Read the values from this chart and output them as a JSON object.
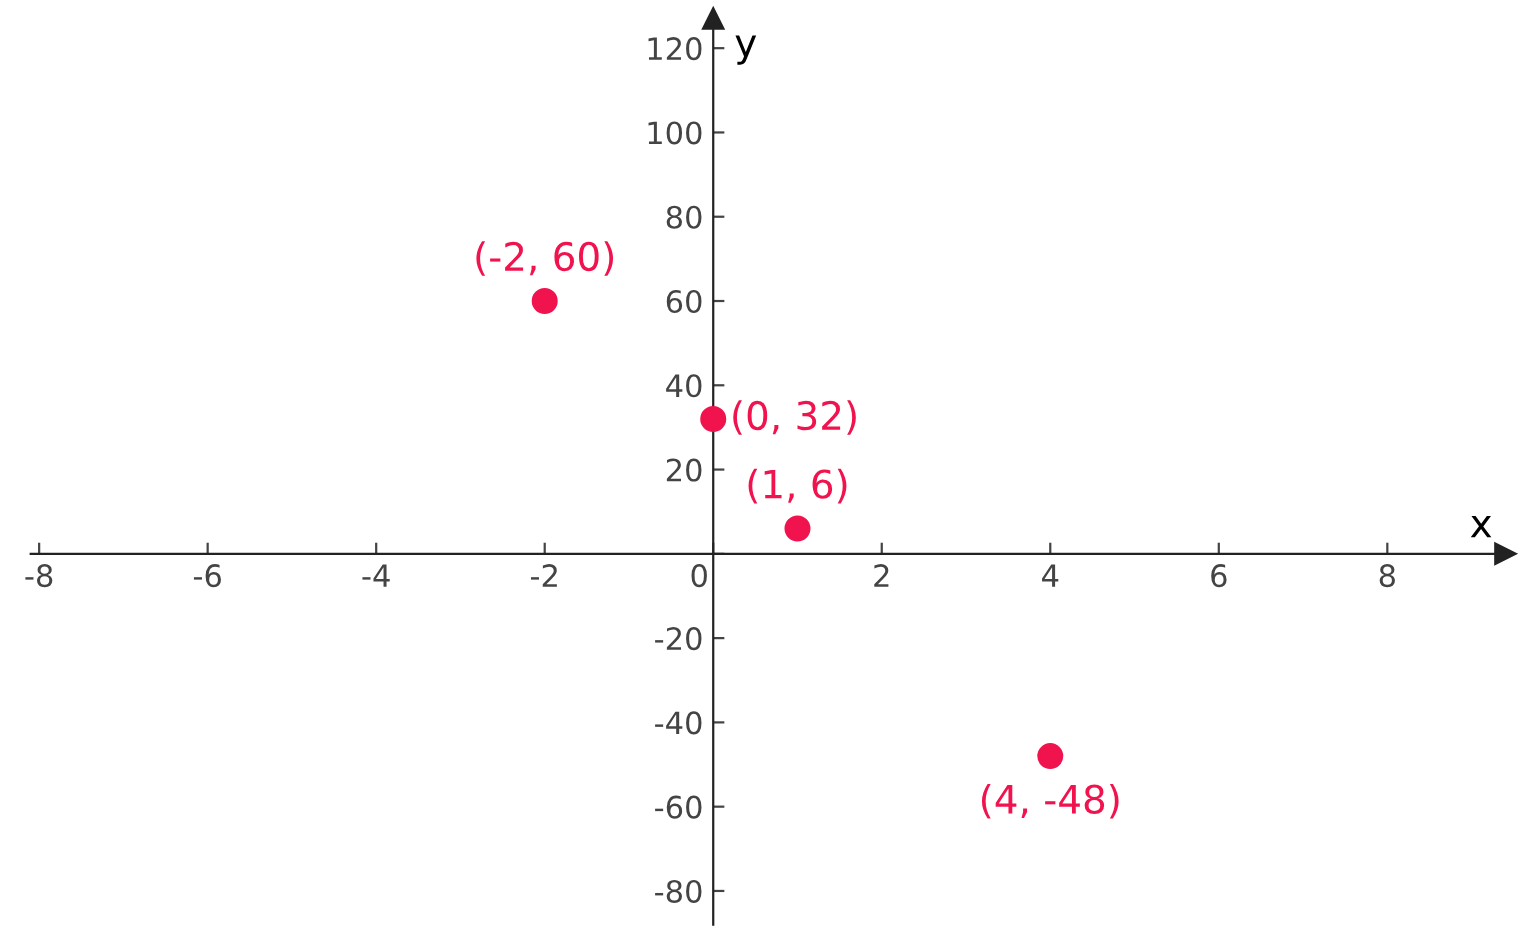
{
  "chart_data": {
    "type": "scatter",
    "xlabel": "x",
    "ylabel": "y",
    "x": [
      -2,
      0,
      1,
      4
    ],
    "values": [
      60,
      32,
      6,
      -48
    ],
    "color": "#f0134d",
    "marker": "circle",
    "xlim": [
      -8.1,
      9.4
    ],
    "ylim": [
      -88,
      127
    ],
    "xticks": [
      -8,
      -6,
      -4,
      -2,
      0,
      2,
      4,
      6,
      8
    ],
    "yticks": [
      -80,
      -60,
      -40,
      -20,
      {
        "value": 0,
        "label": null
      },
      20,
      40,
      60,
      80,
      100,
      120
    ],
    "grid": false,
    "annotations": [
      {
        "text": "(-2, 60)",
        "x": -2,
        "y": 60
      },
      {
        "text": "(0, 32)",
        "x": 0,
        "y": 32
      },
      {
        "text": "(1, 6)",
        "x": 1,
        "y": 6
      },
      {
        "text": "(4, -48)",
        "x": 4,
        "y": -48
      }
    ]
  }
}
